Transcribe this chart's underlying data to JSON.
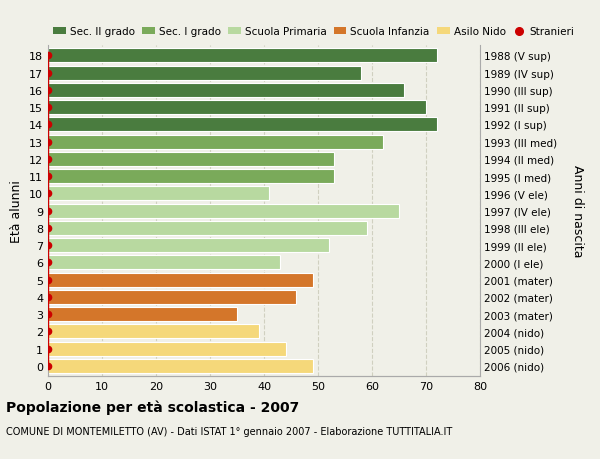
{
  "ages": [
    18,
    17,
    16,
    15,
    14,
    13,
    12,
    11,
    10,
    9,
    8,
    7,
    6,
    5,
    4,
    3,
    2,
    1,
    0
  ],
  "values": [
    72,
    58,
    66,
    70,
    72,
    62,
    53,
    53,
    41,
    65,
    59,
    52,
    43,
    49,
    46,
    35,
    39,
    44,
    49
  ],
  "right_labels": [
    "1988 (V sup)",
    "1989 (IV sup)",
    "1990 (III sup)",
    "1991 (II sup)",
    "1992 (I sup)",
    "1993 (III med)",
    "1994 (II med)",
    "1995 (I med)",
    "1996 (V ele)",
    "1997 (IV ele)",
    "1998 (III ele)",
    "1999 (II ele)",
    "2000 (I ele)",
    "2001 (mater)",
    "2002 (mater)",
    "2003 (mater)",
    "2004 (nido)",
    "2005 (nido)",
    "2006 (nido)"
  ],
  "bar_colors": [
    "#4a7c3f",
    "#4a7c3f",
    "#4a7c3f",
    "#4a7c3f",
    "#4a7c3f",
    "#7aaa5a",
    "#7aaa5a",
    "#7aaa5a",
    "#b8d9a0",
    "#b8d9a0",
    "#b8d9a0",
    "#b8d9a0",
    "#b8d9a0",
    "#d4762a",
    "#d4762a",
    "#d4762a",
    "#f5d87a",
    "#f5d87a",
    "#f5d87a"
  ],
  "legend_labels": [
    "Sec. II grado",
    "Sec. I grado",
    "Scuola Primaria",
    "Scuola Infanzia",
    "Asilo Nido",
    "Stranieri"
  ],
  "legend_colors": [
    "#4a7c3f",
    "#7aaa5a",
    "#b8d9a0",
    "#d4762a",
    "#f5d87a",
    "#cc0000"
  ],
  "ylabel": "Età alunni",
  "right_ylabel": "Anni di nascita",
  "title": "Popolazione per età scolastica - 2007",
  "subtitle": "COMUNE DI MONTEMILETTO (AV) - Dati ISTAT 1° gennaio 2007 - Elaborazione TUTTITALIA.IT",
  "xlim": [
    0,
    80
  ],
  "xticks": [
    0,
    10,
    20,
    30,
    40,
    50,
    60,
    70,
    80
  ],
  "bg_color": "#f0f0e8",
  "bar_edge_color": "#ffffff",
  "stranieri_color": "#cc0000",
  "grid_color": "#d0d0c0"
}
